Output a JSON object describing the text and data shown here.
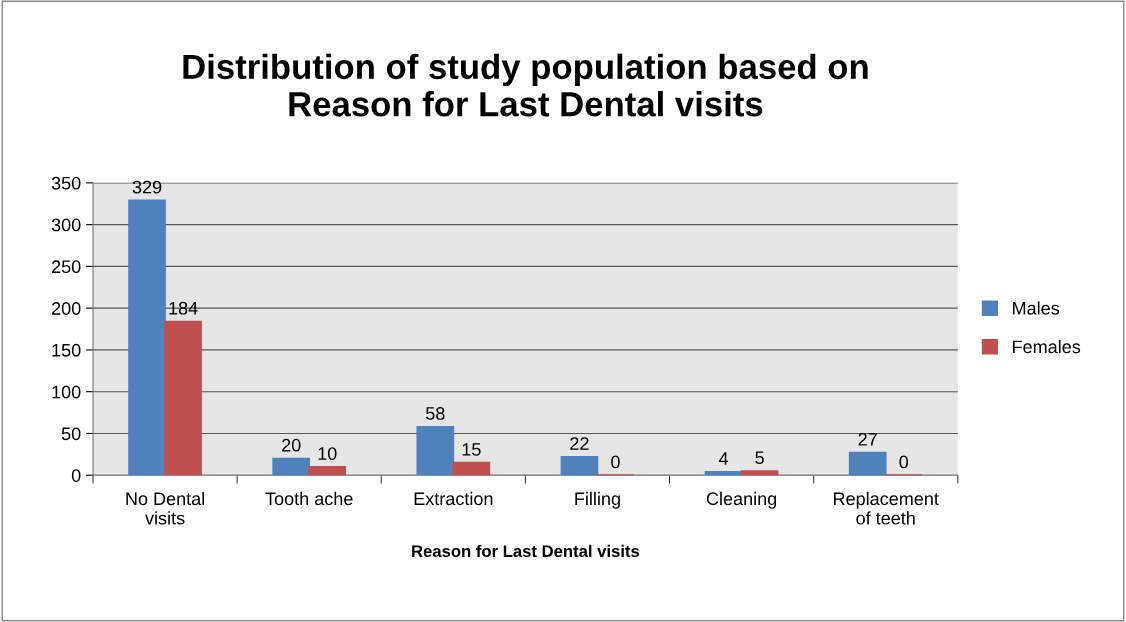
{
  "chart_data": {
    "type": "bar",
    "title": "Distribution of study population based on\nReason for Last Dental visits",
    "xlabel": "Reason for Last Dental visits",
    "categories": [
      "No Dental\nvisits",
      "Tooth ache",
      "Extraction",
      "Filling",
      "Cleaning",
      "Replacement\nof teeth"
    ],
    "series": [
      {
        "name": "Males",
        "color": "#4f81bd",
        "values": [
          329,
          20,
          58,
          22,
          4,
          27
        ]
      },
      {
        "name": "Females",
        "color": "#c0504d",
        "values": [
          184,
          10,
          15,
          0,
          5,
          0
        ]
      }
    ],
    "ylim": [
      0,
      350
    ],
    "yticks": [
      0,
      50,
      100,
      150,
      200,
      250,
      300,
      350
    ],
    "grid": "y",
    "legend": "right",
    "data_labels": true
  }
}
